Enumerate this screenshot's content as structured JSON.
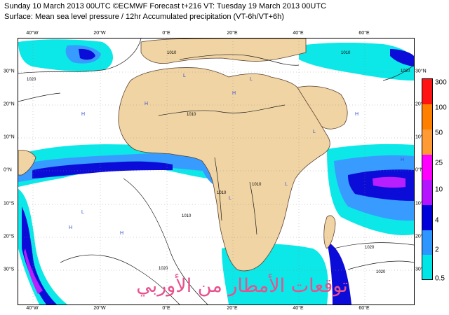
{
  "header": {
    "line1": "Sunday 10 March 2013 00UTC ©ECMWF Forecast t+216 VT: Tuesday 19 March 2013 00UTC",
    "line2": "Surface: Mean sea level pressure / 12hr Accumulated precipitation (VT-6h/VT+6h)"
  },
  "axes": {
    "lon_labels": [
      "40°W",
      "20°W",
      "0°E",
      "20°E",
      "40°E",
      "60°E"
    ],
    "lat_labels": [
      "30°N",
      "20°N",
      "10°N",
      "0°N",
      "10°S",
      "20°S",
      "30°S"
    ]
  },
  "isobars": {
    "labels": [
      "1020",
      "1020",
      "1010",
      "1010",
      "1010",
      "1010",
      "1010",
      "1010",
      "1020",
      "1020",
      "1020"
    ],
    "pressure_centers": [
      "H",
      "H",
      "H",
      "L",
      "L",
      "H",
      "H",
      "L",
      "L",
      "L",
      "H",
      "H",
      "L"
    ]
  },
  "legend": {
    "title": "",
    "labels": [
      "300",
      "100",
      "50",
      "25",
      "10",
      "4",
      "2",
      "0.5"
    ],
    "colors": [
      "#ff1414",
      "#ff7f00",
      "#ff9a34",
      "#ff00ff",
      "#b414ff",
      "#0000d8",
      "#2d96ff",
      "#00e6e6"
    ]
  },
  "watermark": "توقعات الأمطار من الأوربي",
  "colors": {
    "land": "#f0d4a4",
    "sea": "#ffffff",
    "precip_light": "#00e6e6",
    "precip_mid": "#2d96ff",
    "precip_heavy": "#0000d8",
    "precip_very_heavy": "#b414ff"
  }
}
